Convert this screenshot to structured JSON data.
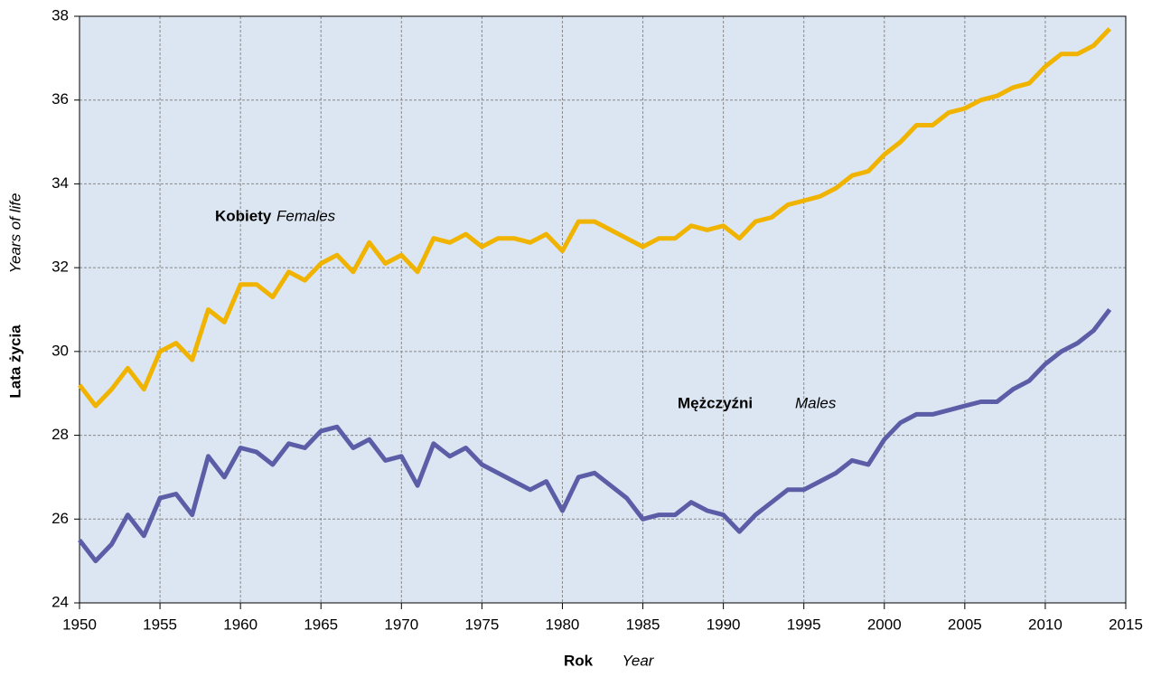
{
  "chart_data": {
    "type": "line",
    "x_label": "Rok",
    "x_label_en": "Year",
    "y_label": "Lata życia",
    "y_label_en": "Years of life",
    "x": [
      1950,
      1951,
      1952,
      1953,
      1954,
      1955,
      1956,
      1957,
      1958,
      1959,
      1960,
      1961,
      1962,
      1963,
      1964,
      1965,
      1966,
      1967,
      1968,
      1969,
      1970,
      1971,
      1972,
      1973,
      1974,
      1975,
      1976,
      1977,
      1978,
      1979,
      1980,
      1981,
      1982,
      1983,
      1984,
      1985,
      1986,
      1987,
      1988,
      1989,
      1990,
      1991,
      1992,
      1993,
      1994,
      1995,
      1996,
      1997,
      1998,
      1999,
      2000,
      2001,
      2002,
      2003,
      2004,
      2005,
      2006,
      2007,
      2008,
      2009,
      2010,
      2011,
      2012,
      2013,
      2014
    ],
    "series": [
      {
        "name": "Kobiety",
        "name_en": "Females",
        "color": "#f0b400",
        "values": [
          29.2,
          28.7,
          29.1,
          29.6,
          29.1,
          30.0,
          30.2,
          29.8,
          31.0,
          30.7,
          31.6,
          31.6,
          31.3,
          31.9,
          31.7,
          32.1,
          32.3,
          31.9,
          32.6,
          32.1,
          32.3,
          31.9,
          32.7,
          32.6,
          32.8,
          32.5,
          32.7,
          32.7,
          32.6,
          32.8,
          32.4,
          33.1,
          33.1,
          32.9,
          32.7,
          32.5,
          32.7,
          32.7,
          33.0,
          32.9,
          33.0,
          32.7,
          33.1,
          33.2,
          33.5,
          33.6,
          33.7,
          33.9,
          34.2,
          34.3,
          34.7,
          35.0,
          35.4,
          35.4,
          35.7,
          35.8,
          36.0,
          36.1,
          36.3,
          36.4,
          36.8,
          37.1,
          37.1,
          37.3,
          37.7
        ]
      },
      {
        "name": "Mężczyźni",
        "name_en": "Males",
        "color": "#5b5ea6",
        "values": [
          25.5,
          25.0,
          25.4,
          26.1,
          25.6,
          26.5,
          26.6,
          26.1,
          27.5,
          27.0,
          27.7,
          27.6,
          27.3,
          27.8,
          27.7,
          28.1,
          28.2,
          27.7,
          27.9,
          27.4,
          27.5,
          26.8,
          27.8,
          27.5,
          27.7,
          27.3,
          27.1,
          26.9,
          26.7,
          26.9,
          26.2,
          27.0,
          27.1,
          26.8,
          26.5,
          26.0,
          26.1,
          26.1,
          26.4,
          26.2,
          26.1,
          25.7,
          26.1,
          26.4,
          26.7,
          26.7,
          26.9,
          27.1,
          27.4,
          27.3,
          27.9,
          28.3,
          28.5,
          28.5,
          28.6,
          28.7,
          28.8,
          28.8,
          29.1,
          29.3,
          29.7,
          30.0,
          30.2,
          30.5,
          31.0
        ]
      }
    ],
    "xlim": [
      1950,
      2015
    ],
    "xticks": [
      1950,
      1955,
      1960,
      1965,
      1970,
      1975,
      1980,
      1985,
      1990,
      1995,
      2000,
      2005,
      2010,
      2015
    ],
    "ylim": [
      24,
      38
    ],
    "yticks": [
      24,
      26,
      28,
      30,
      32,
      34,
      36,
      38
    ],
    "grid": true
  }
}
